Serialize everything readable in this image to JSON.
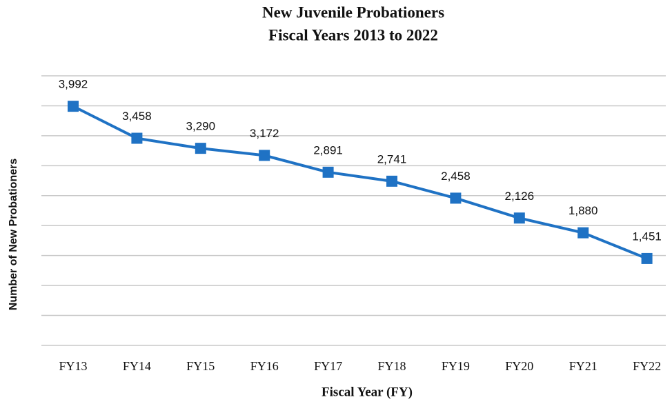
{
  "chart_data": {
    "type": "line",
    "title": "New Juvenile Probationers",
    "subtitle": "Fiscal Years 2013 to 2022",
    "x_label": "Fiscal Year (FY)",
    "y_label": "Number of New Probationers",
    "categories": [
      "FY13",
      "FY14",
      "FY15",
      "FY16",
      "FY17",
      "FY18",
      "FY19",
      "FY20",
      "FY21",
      "FY22"
    ],
    "series": [
      {
        "name": "New Probationers",
        "color": "#1f72c4",
        "values": [
          3992,
          3458,
          3290,
          3172,
          2891,
          2741,
          2458,
          2126,
          1880,
          1451
        ],
        "value_labels": [
          "3,992",
          "3,458",
          "3,290",
          "3,172",
          "2,891",
          "2,741",
          "2,458",
          "2,126",
          "1,880",
          "1,451"
        ]
      }
    ],
    "ylim": [
      0,
      4500
    ],
    "yticks": [
      0,
      500,
      1000,
      1500,
      2000,
      2500,
      3000,
      3500,
      4000,
      4500
    ],
    "grid": true
  }
}
